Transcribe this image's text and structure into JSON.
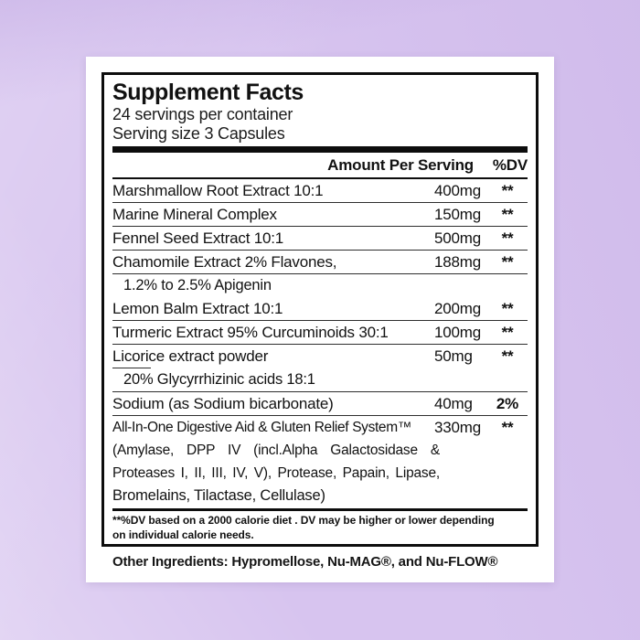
{
  "background": {
    "base_color": "#d7c4ef",
    "card_color": "#ffffff",
    "line_color": "#0d0d0d"
  },
  "label": {
    "title": "Supplement Facts",
    "servings_per_container": "24 servings per container",
    "serving_size": "Serving size 3 Capsules",
    "columns": {
      "amount_header": "Amount Per Serving",
      "dv_header": "%DV"
    },
    "rows": [
      {
        "name": "Marshmallow Root Extract 10:1",
        "amount": "400mg",
        "dv": "**",
        "divider_above": false
      },
      {
        "name": "Marine Mineral Complex",
        "amount": "150mg",
        "dv": "**",
        "divider_above": true
      },
      {
        "name": "Fennel Seed Extract 10:1",
        "amount": "500mg",
        "dv": "**",
        "divider_above": true
      },
      {
        "name": "Chamomile Extract 2% Flavones,",
        "amount": "188mg",
        "dv": "**",
        "divider_above": true,
        "divider_after_name": "full",
        "sub": [
          {
            "text": "1.2% to 2.5% Apigenin",
            "indent": true
          }
        ]
      },
      {
        "name": "Lemon Balm Extract 10:1",
        "amount": "200mg",
        "dv": "**",
        "divider_above": false
      },
      {
        "name": "Turmeric Extract 95% Curcuminoids 30:1",
        "amount": "100mg",
        "dv": "**",
        "divider_above": true
      },
      {
        "name": "Licorice extract powder",
        "amount": "50mg",
        "dv": "**",
        "divider_above": true,
        "divider_after_name": "stub",
        "sub": [
          {
            "text": "20% Glycyrrhizinic acids 18:1",
            "indent": true
          }
        ]
      },
      {
        "name": "Sodium (as Sodium bicarbonate)",
        "amount": "40mg",
        "dv": "2%",
        "divider_above": true
      },
      {
        "name": "All-In-One Digestive Aid & Gluten Relief System™",
        "amount": "330mg",
        "dv": "**",
        "divider_above": true,
        "small_name": true,
        "sub": [
          {
            "text": "(Amylase, DPP IV (incl.Alpha Galactosidase &",
            "justify": true
          },
          {
            "text": "Proteases I, II, III, IV, V), Protease, Papain, Lipase,",
            "justify": true
          },
          {
            "text": "Bromelains, Tilactase, Cellulase)"
          }
        ]
      }
    ],
    "footnote": {
      "line1": "**%DV based on a 2000 calorie diet . DV may be higher or lower depending",
      "line2": "on individual calorie needs."
    },
    "other_ingredients": "Other Ingredients: Hypromellose, Nu-MAG®, and Nu-FLOW®"
  }
}
